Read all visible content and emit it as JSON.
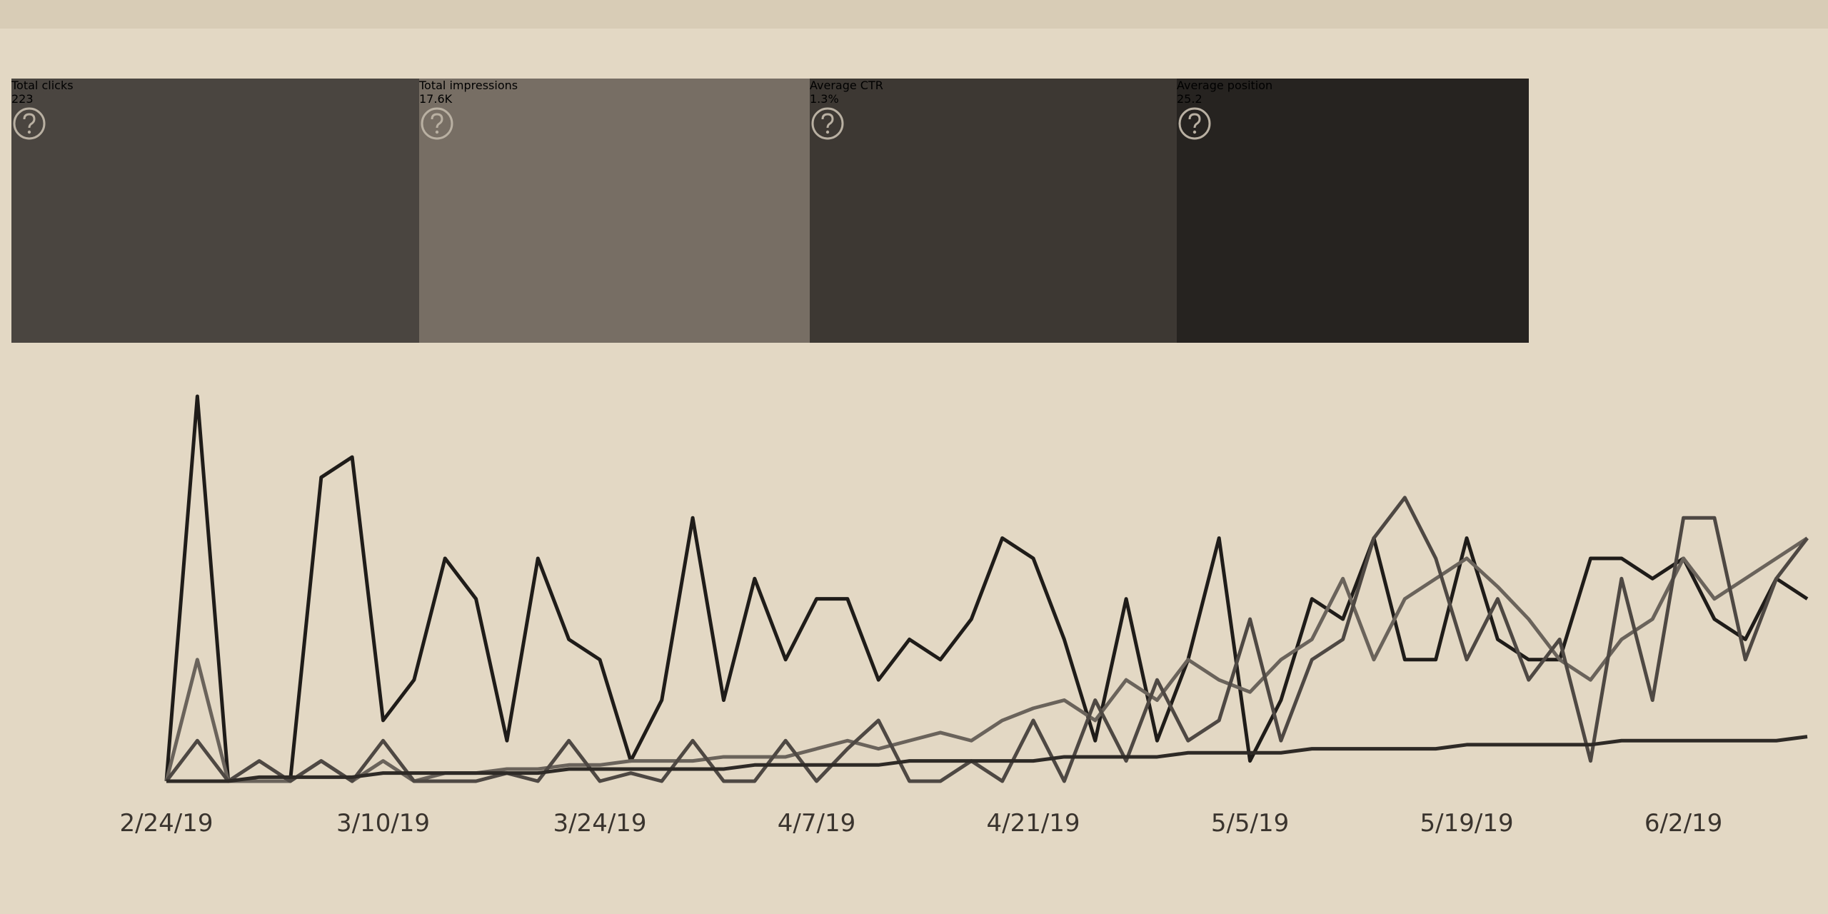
{
  "cards": [
    {
      "label": "Total clicks",
      "value": "223"
    },
    {
      "label": "Total impressions",
      "value": "17.6K"
    },
    {
      "label": "Average CTR",
      "value": "1.3%"
    },
    {
      "label": "Average position",
      "value": "25.2"
    }
  ],
  "chart_data": {
    "type": "line",
    "categories": [
      "2/24/19",
      null,
      null,
      null,
      null,
      null,
      null,
      "3/10/19",
      null,
      null,
      null,
      null,
      null,
      null,
      "3/24/19",
      null,
      null,
      null,
      null,
      null,
      null,
      "4/7/19",
      null,
      null,
      null,
      null,
      null,
      null,
      "4/21/19",
      null,
      null,
      null,
      null,
      null,
      null,
      "5/5/19",
      null,
      null,
      null,
      null,
      null,
      null,
      "5/19/19",
      null,
      null,
      null,
      null,
      null,
      null,
      "6/2/19",
      null,
      null,
      null,
      null
    ],
    "series": [
      {
        "color": "#1f1c19",
        "values": [
          0,
          95,
          0,
          0,
          0,
          75,
          80,
          15,
          25,
          55,
          45,
          10,
          55,
          35,
          30,
          5,
          20,
          65,
          20,
          50,
          30,
          45,
          45,
          25,
          35,
          30,
          40,
          60,
          55,
          35,
          10,
          45,
          10,
          30,
          60,
          5,
          20,
          45,
          40,
          60,
          30,
          30,
          60,
          35,
          30,
          30,
          55,
          55,
          50,
          55,
          40,
          35,
          50,
          45
        ]
      },
      {
        "color": "#6a635b",
        "values": [
          0,
          30,
          0,
          0,
          0,
          5,
          0,
          5,
          0,
          2,
          2,
          3,
          3,
          4,
          4,
          5,
          5,
          5,
          6,
          6,
          6,
          8,
          10,
          8,
          10,
          12,
          10,
          15,
          18,
          20,
          15,
          25,
          20,
          30,
          25,
          22,
          30,
          35,
          50,
          30,
          45,
          50,
          55,
          48,
          40,
          30,
          25,
          35,
          40,
          55,
          45,
          50,
          55,
          60
        ]
      },
      {
        "color": "#4e4843",
        "values": [
          0,
          10,
          0,
          5,
          0,
          5,
          0,
          10,
          0,
          0,
          0,
          2,
          0,
          10,
          0,
          2,
          0,
          10,
          0,
          0,
          10,
          0,
          8,
          15,
          0,
          0,
          5,
          0,
          15,
          0,
          20,
          5,
          25,
          10,
          15,
          40,
          10,
          30,
          35,
          60,
          70,
          55,
          30,
          45,
          25,
          35,
          5,
          50,
          20,
          65,
          65,
          30,
          50,
          60
        ]
      },
      {
        "color": "#2e2a26",
        "values": [
          0,
          0,
          0,
          1,
          1,
          1,
          1,
          2,
          2,
          2,
          2,
          2,
          2,
          3,
          3,
          3,
          3,
          3,
          3,
          4,
          4,
          4,
          4,
          4,
          5,
          5,
          5,
          5,
          5,
          6,
          6,
          6,
          6,
          7,
          7,
          7,
          7,
          8,
          8,
          8,
          8,
          8,
          9,
          9,
          9,
          9,
          9,
          10,
          10,
          10,
          10,
          10,
          10,
          11
        ]
      }
    ]
  }
}
